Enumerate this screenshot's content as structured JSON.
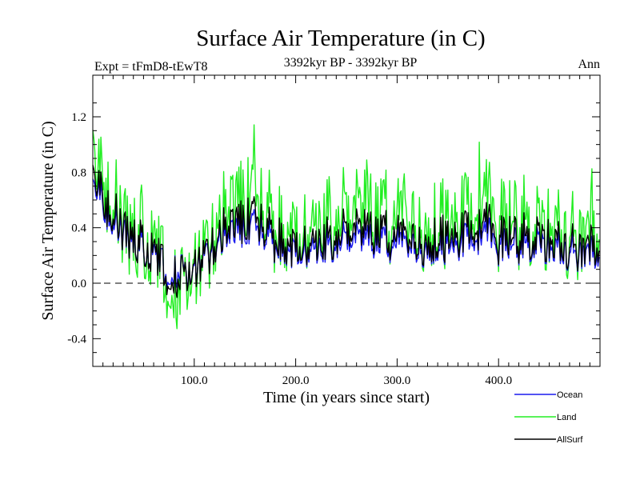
{
  "chart_data": {
    "type": "line",
    "title": "Surface Air Temperature (in C)",
    "subtitle": "3392kyr BP - 3392kyr BP",
    "experiment_label": "Expt = tFmD8-tEwT8",
    "period_label": "Ann",
    "xlabel": "Time (in years since start)",
    "ylabel": "Surface Air Temperature (in C)",
    "xlim": [
      0,
      500
    ],
    "ylim": [
      -0.6,
      1.5
    ],
    "x_ticks": [
      100,
      200,
      300,
      400
    ],
    "x_tick_labels": [
      "100.0",
      "200.0",
      "300.0",
      "400.0"
    ],
    "y_ticks": [
      -0.4,
      0.0,
      0.4,
      0.8,
      1.2
    ],
    "y_tick_labels": [
      "-0.4",
      "0.0",
      "0.4",
      "0.8",
      "1.2"
    ],
    "reference_line": 0.0,
    "anchors": {
      "Ocean": [
        [
          0,
          0.75
        ],
        [
          5,
          0.75
        ],
        [
          10,
          0.55
        ],
        [
          20,
          0.45
        ],
        [
          40,
          0.3
        ],
        [
          60,
          0.22
        ],
        [
          75,
          0.08
        ],
        [
          85,
          0.1
        ],
        [
          95,
          0.08
        ],
        [
          110,
          0.15
        ],
        [
          125,
          0.3
        ],
        [
          140,
          0.38
        ],
        [
          160,
          0.4
        ],
        [
          180,
          0.28
        ],
        [
          200,
          0.22
        ],
        [
          220,
          0.22
        ],
        [
          240,
          0.28
        ],
        [
          260,
          0.35
        ],
        [
          280,
          0.3
        ],
        [
          300,
          0.28
        ],
        [
          320,
          0.22
        ],
        [
          340,
          0.28
        ],
        [
          360,
          0.3
        ],
        [
          380,
          0.32
        ],
        [
          390,
          0.4
        ],
        [
          400,
          0.32
        ],
        [
          420,
          0.28
        ],
        [
          440,
          0.3
        ],
        [
          460,
          0.25
        ],
        [
          480,
          0.22
        ],
        [
          500,
          0.2
        ]
      ],
      "Land": [
        [
          0,
          1.1
        ],
        [
          5,
          1.0
        ],
        [
          10,
          0.7
        ],
        [
          20,
          0.6
        ],
        [
          40,
          0.35
        ],
        [
          60,
          0.3
        ],
        [
          75,
          0.05
        ],
        [
          85,
          -0.05
        ],
        [
          95,
          0.1
        ],
        [
          110,
          0.15
        ],
        [
          125,
          0.4
        ],
        [
          140,
          0.6
        ],
        [
          160,
          0.6
        ],
        [
          180,
          0.4
        ],
        [
          200,
          0.35
        ],
        [
          220,
          0.35
        ],
        [
          240,
          0.45
        ],
        [
          260,
          0.6
        ],
        [
          280,
          0.5
        ],
        [
          300,
          0.45
        ],
        [
          320,
          0.35
        ],
        [
          340,
          0.45
        ],
        [
          360,
          0.5
        ],
        [
          380,
          0.5
        ],
        [
          390,
          0.7
        ],
        [
          400,
          0.55
        ],
        [
          420,
          0.45
        ],
        [
          440,
          0.45
        ],
        [
          460,
          0.4
        ],
        [
          480,
          0.35
        ],
        [
          500,
          0.35
        ]
      ],
      "AllSurf": [
        [
          0,
          0.85
        ],
        [
          5,
          0.8
        ],
        [
          10,
          0.6
        ],
        [
          20,
          0.5
        ],
        [
          40,
          0.32
        ],
        [
          60,
          0.24
        ],
        [
          75,
          0.07
        ],
        [
          85,
          0.05
        ],
        [
          95,
          0.09
        ],
        [
          110,
          0.15
        ],
        [
          125,
          0.33
        ],
        [
          140,
          0.44
        ],
        [
          160,
          0.46
        ],
        [
          180,
          0.32
        ],
        [
          200,
          0.26
        ],
        [
          220,
          0.26
        ],
        [
          240,
          0.33
        ],
        [
          260,
          0.42
        ],
        [
          280,
          0.36
        ],
        [
          300,
          0.33
        ],
        [
          320,
          0.26
        ],
        [
          340,
          0.33
        ],
        [
          360,
          0.36
        ],
        [
          380,
          0.38
        ],
        [
          390,
          0.48
        ],
        [
          400,
          0.38
        ],
        [
          420,
          0.33
        ],
        [
          440,
          0.35
        ],
        [
          460,
          0.3
        ],
        [
          480,
          0.26
        ],
        [
          500,
          0.25
        ]
      ]
    },
    "noise": {
      "Ocean": 0.16,
      "Land": 0.38,
      "AllSurf": 0.2
    },
    "series": [
      {
        "name": "Land",
        "color": "#22ee22"
      },
      {
        "name": "Ocean",
        "color": "#1a1aee"
      },
      {
        "name": "AllSurf",
        "color": "#000000"
      }
    ],
    "legend": [
      {
        "name": "Ocean",
        "color": "#1a1aee"
      },
      {
        "name": "Land",
        "color": "#22ee22"
      },
      {
        "name": "AllSurf",
        "color": "#000000"
      }
    ],
    "legend_position": "bottom-right"
  }
}
